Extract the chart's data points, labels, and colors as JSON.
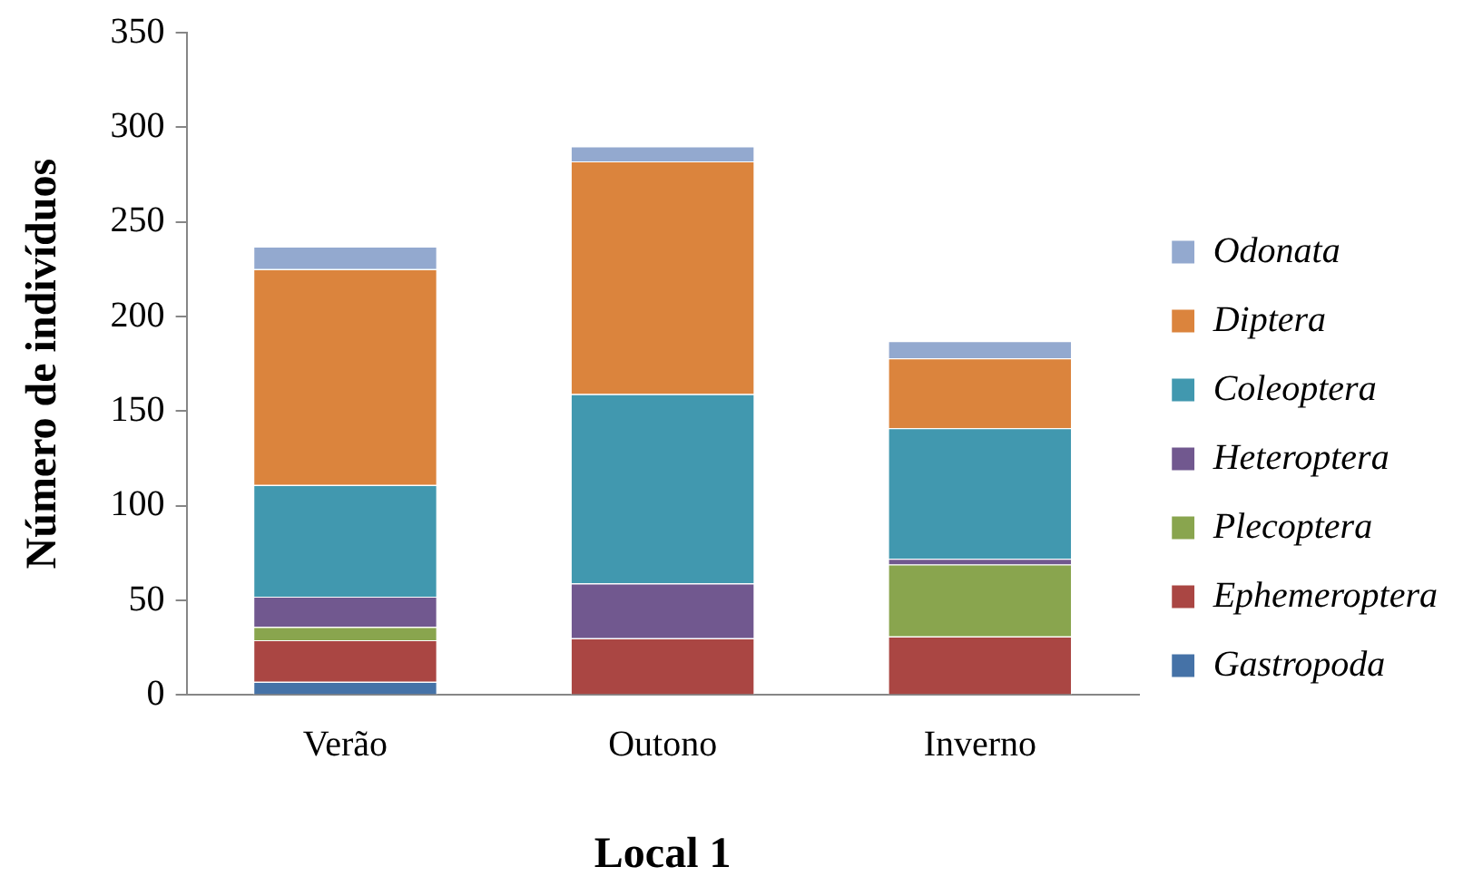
{
  "chart_data": {
    "type": "bar",
    "stacked": true,
    "xlabel": "Local 1",
    "ylabel": "Número de indivíduos",
    "categories": [
      "Verão",
      "Outono",
      "Inverno"
    ],
    "series": [
      {
        "name": "Gastropoda",
        "color": "#4572a7",
        "values": [
          7,
          0,
          0
        ]
      },
      {
        "name": "Ephemeroptera",
        "color": "#aa4643",
        "values": [
          22,
          30,
          31
        ]
      },
      {
        "name": "Plecoptera",
        "color": "#89a54e",
        "values": [
          7,
          0,
          38
        ]
      },
      {
        "name": "Heteroptera",
        "color": "#71588f",
        "values": [
          16,
          29,
          3
        ]
      },
      {
        "name": "Coleoptera",
        "color": "#4198af",
        "values": [
          59,
          100,
          69
        ]
      },
      {
        "name": "Diptera",
        "color": "#db843d",
        "values": [
          114,
          123,
          37
        ]
      },
      {
        "name": "Odonata",
        "color": "#93a9cf",
        "values": [
          12,
          8,
          9
        ]
      }
    ],
    "ylim": [
      0,
      350
    ],
    "yticks": [
      0,
      50,
      100,
      150,
      200,
      250,
      300,
      350
    ],
    "grid": false,
    "legend": "right"
  }
}
